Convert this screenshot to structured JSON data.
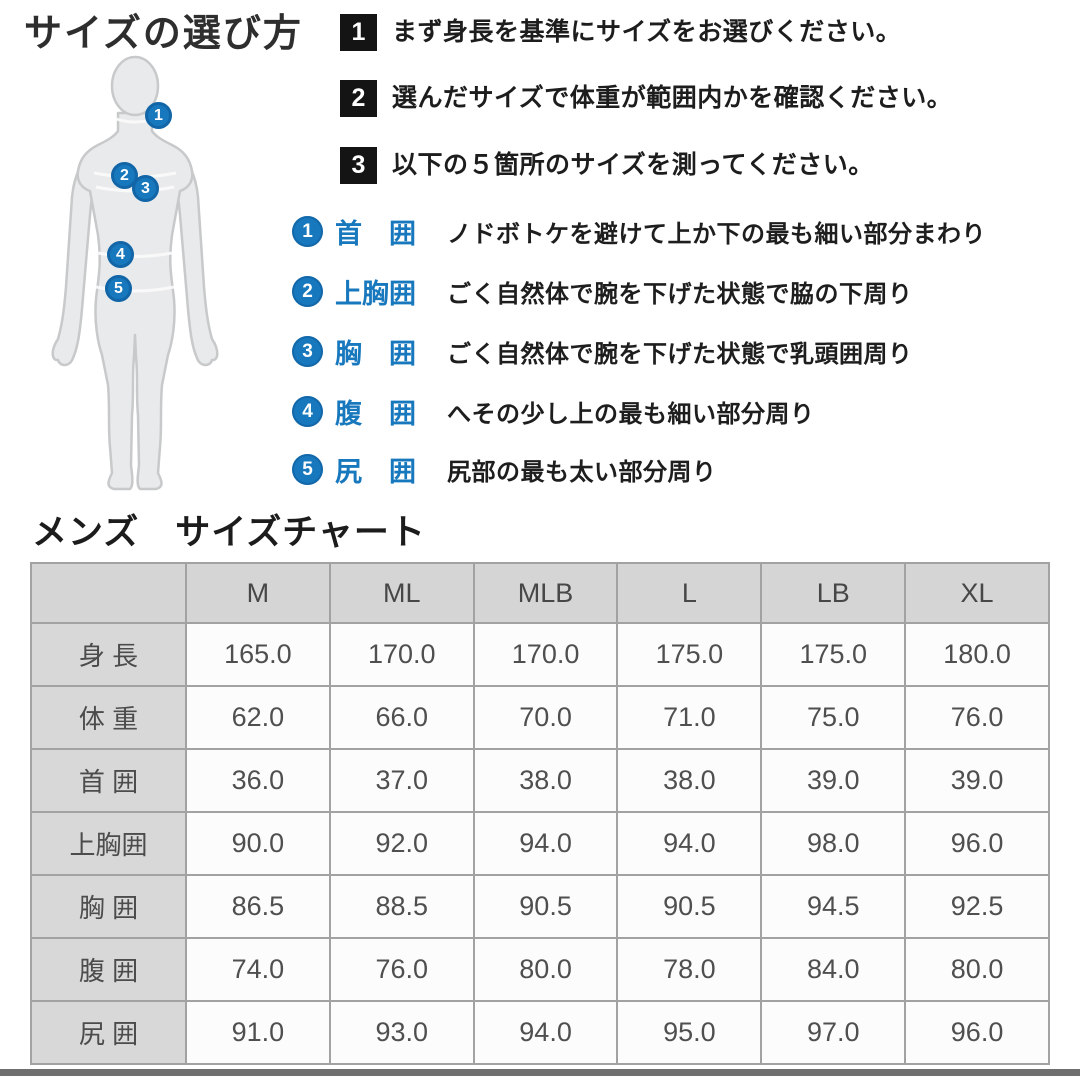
{
  "page": {
    "title": "サイズの選び方",
    "section2_title": "メンズ　サイズチャート"
  },
  "steps": [
    {
      "num": "1",
      "text": "まず身長を基準にサイズをお選びください。"
    },
    {
      "num": "2",
      "text": "選んだサイズで体重が範囲内かを確認ください。"
    },
    {
      "num": "3",
      "text": "以下の５箇所のサイズを測ってください。"
    }
  ],
  "measurements": [
    {
      "num": "1",
      "label": "首　囲",
      "desc": "ノドボトケを避けて上か下の最も細い部分まわり"
    },
    {
      "num": "2",
      "label": "上胸囲",
      "desc": "ごく自然体で腕を下げた状態で脇の下周り"
    },
    {
      "num": "3",
      "label": "胸　囲",
      "desc": "ごく自然体で腕を下げた状態で乳頭囲周り"
    },
    {
      "num": "4",
      "label": "腹　囲",
      "desc": "へその少し上の最も細い部分周り"
    },
    {
      "num": "5",
      "label": "尻　囲",
      "desc": "尻部の最も太い部分周り"
    }
  ],
  "size_chart": {
    "columns": [
      "M",
      "ML",
      "MLB",
      "L",
      "LB",
      "XL"
    ],
    "rows": [
      {
        "label": "身 長",
        "values": [
          "165.0",
          "170.0",
          "170.0",
          "175.0",
          "175.0",
          "180.0"
        ]
      },
      {
        "label": "体 重",
        "values": [
          "62.0",
          "66.0",
          "70.0",
          "71.0",
          "75.0",
          "76.0"
        ]
      },
      {
        "label": "首 囲",
        "values": [
          "36.0",
          "37.0",
          "38.0",
          "38.0",
          "39.0",
          "39.0"
        ]
      },
      {
        "label": "上胸囲",
        "values": [
          "90.0",
          "92.0",
          "94.0",
          "94.0",
          "98.0",
          "96.0"
        ]
      },
      {
        "label": "胸 囲",
        "values": [
          "86.5",
          "88.5",
          "90.5",
          "90.5",
          "94.5",
          "92.5"
        ]
      },
      {
        "label": "腹 囲",
        "values": [
          "74.0",
          "76.0",
          "80.0",
          "78.0",
          "84.0",
          "80.0"
        ]
      },
      {
        "label": "尻 囲",
        "values": [
          "91.0",
          "93.0",
          "94.0",
          "95.0",
          "97.0",
          "96.0"
        ]
      }
    ]
  },
  "colors": {
    "accent_blue": "#1878bd",
    "step_square_black": "#141414",
    "table_header_bg": "#d5d5d5",
    "table_border": "#a2a2a2",
    "bottom_bar_gray": "#6f6f6f"
  }
}
